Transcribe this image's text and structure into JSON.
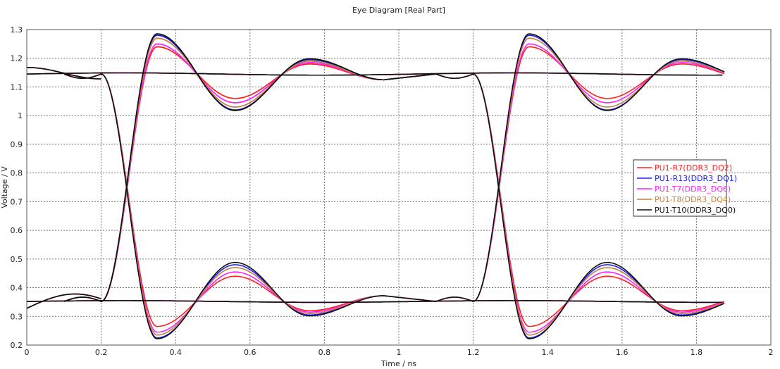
{
  "chart_data": {
    "type": "line",
    "title": "Eye Diagram [Real Part]",
    "xlabel": "Time / ns",
    "ylabel": "Voltage / V",
    "xlim": [
      0,
      2
    ],
    "ylim": [
      0.2,
      1.3
    ],
    "xticks": [
      "0",
      "0.2",
      "0.4",
      "0.6",
      "0.8",
      "1",
      "1.2",
      "1.4",
      "1.6",
      "1.8",
      "2"
    ],
    "yticks": [
      "0.2",
      "0.3",
      "0.4",
      "0.5",
      "0.6",
      "0.7",
      "0.8",
      "0.9",
      "1",
      "1.1",
      "1.2",
      "1.3"
    ],
    "grid": true,
    "legend_position": "right",
    "series": [
      {
        "name": "PU1-R7(DDR3_DQ2)",
        "color": "#ff2020",
        "overshoot_high": 1.24,
        "undershoot_high": 1.06,
        "ring_high": 1.18,
        "overshoot_low": 0.265,
        "undershoot_low": 0.44,
        "ring_low": 0.32
      },
      {
        "name": "PU1-R13(DDR3_DQ1)",
        "color": "#2020ff",
        "overshoot_high": 1.28,
        "undershoot_high": 1.02,
        "ring_high": 1.195,
        "overshoot_low": 0.225,
        "undershoot_low": 0.48,
        "ring_low": 0.305
      },
      {
        "name": "PU1-T7(DDR3_DQ6)",
        "color": "#ff20ff",
        "overshoot_high": 1.25,
        "undershoot_high": 1.045,
        "ring_high": 1.185,
        "overshoot_low": 0.245,
        "undershoot_low": 0.455,
        "ring_low": 0.315
      },
      {
        "name": "PU1-T8(DDR3_DQ4)",
        "color": "#c08040",
        "overshoot_high": 1.27,
        "undershoot_high": 1.03,
        "ring_high": 1.19,
        "overshoot_low": 0.235,
        "undershoot_low": 0.47,
        "ring_low": 0.31
      },
      {
        "name": "PU1-T10(DDR3_DQ0)",
        "color": "#101010",
        "overshoot_high": 1.285,
        "undershoot_high": 1.018,
        "ring_high": 1.198,
        "overshoot_low": 0.222,
        "undershoot_low": 0.488,
        "ring_low": 0.302
      }
    ],
    "levels": {
      "high": 1.145,
      "low": 0.352
    }
  }
}
